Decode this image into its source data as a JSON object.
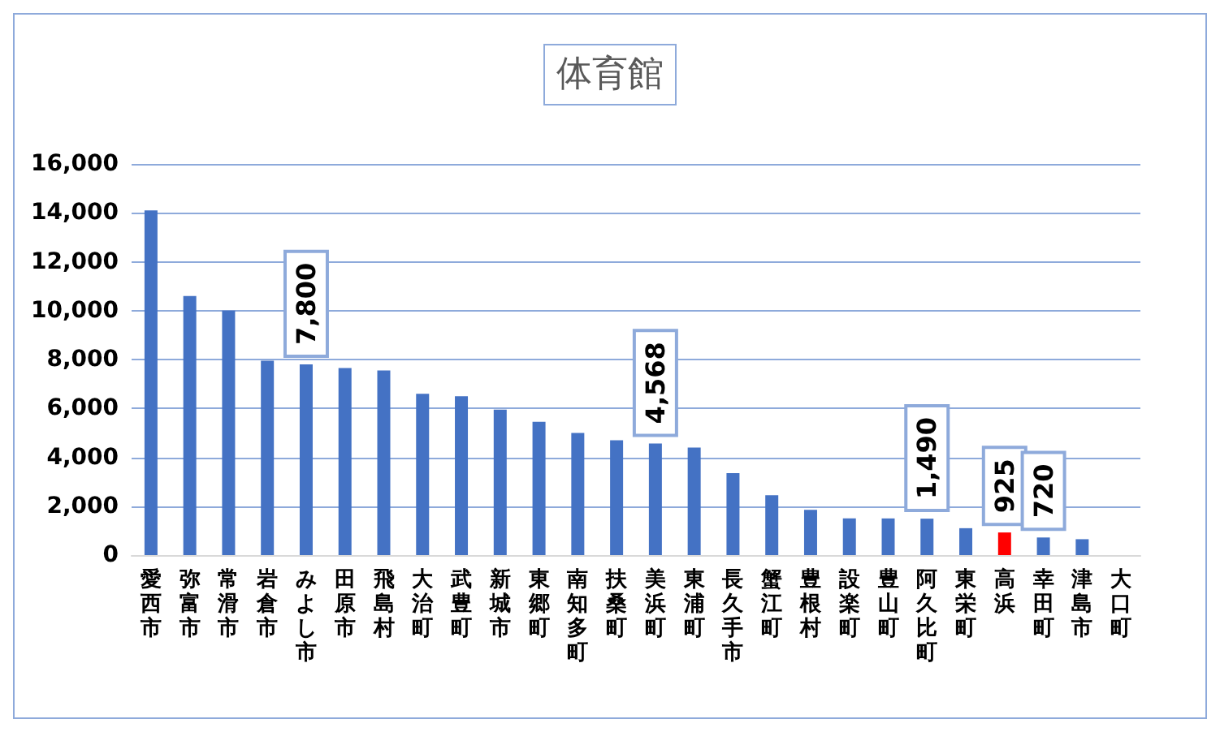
{
  "chart_data": {
    "type": "bar",
    "title": "体育館",
    "categories": [
      "愛西市",
      "弥富市",
      "常滑市",
      "岩倉市",
      "みよし市",
      "田原市",
      "飛島村",
      "大治町",
      "武豊町",
      "新城市",
      "東郷町",
      "南知多町",
      "扶桑町",
      "美浜町",
      "東浦町",
      "長久手市",
      "蟹江町",
      "豊根村",
      "設楽町",
      "豊山町",
      "阿久比町",
      "東栄町",
      "高浜",
      "幸田町",
      "津島市",
      "大口町"
    ],
    "values": [
      14100,
      10600,
      10000,
      7950,
      7800,
      7650,
      7550,
      6600,
      6500,
      5950,
      5450,
      5000,
      4700,
      4568,
      4400,
      3350,
      2450,
      1850,
      1500,
      1500,
      1490,
      1100,
      925,
      720,
      650,
      0
    ],
    "value_labels": [
      null,
      null,
      null,
      null,
      "7,800",
      null,
      null,
      null,
      null,
      null,
      null,
      null,
      null,
      "4,568",
      null,
      null,
      null,
      null,
      null,
      null,
      "1,490",
      null,
      "925",
      "720",
      null,
      null
    ],
    "colors": [
      "#4472c4",
      "#4472c4",
      "#4472c4",
      "#4472c4",
      "#4472c4",
      "#4472c4",
      "#4472c4",
      "#4472c4",
      "#4472c4",
      "#4472c4",
      "#4472c4",
      "#4472c4",
      "#4472c4",
      "#4472c4",
      "#4472c4",
      "#4472c4",
      "#4472c4",
      "#4472c4",
      "#4472c4",
      "#4472c4",
      "#4472c4",
      "#4472c4",
      "#ff0000",
      "#4472c4",
      "#4472c4",
      "#4472c4"
    ],
    "ylim": [
      0,
      16000
    ],
    "yticks": [
      0,
      {
        "value": 2000,
        "label": "2,000"
      },
      {
        "value": 4000,
        "label": "4,000"
      },
      {
        "value": 6000,
        "label": "6,000"
      },
      {
        "value": 8000,
        "label": "8,000"
      },
      {
        "value": 10000,
        "label": "10,000"
      },
      {
        "value": 12000,
        "label": "12,000"
      },
      {
        "value": 14000,
        "label": "14,000"
      },
      {
        "value": 16000,
        "label": "16,000"
      }
    ],
    "grid": "y"
  }
}
